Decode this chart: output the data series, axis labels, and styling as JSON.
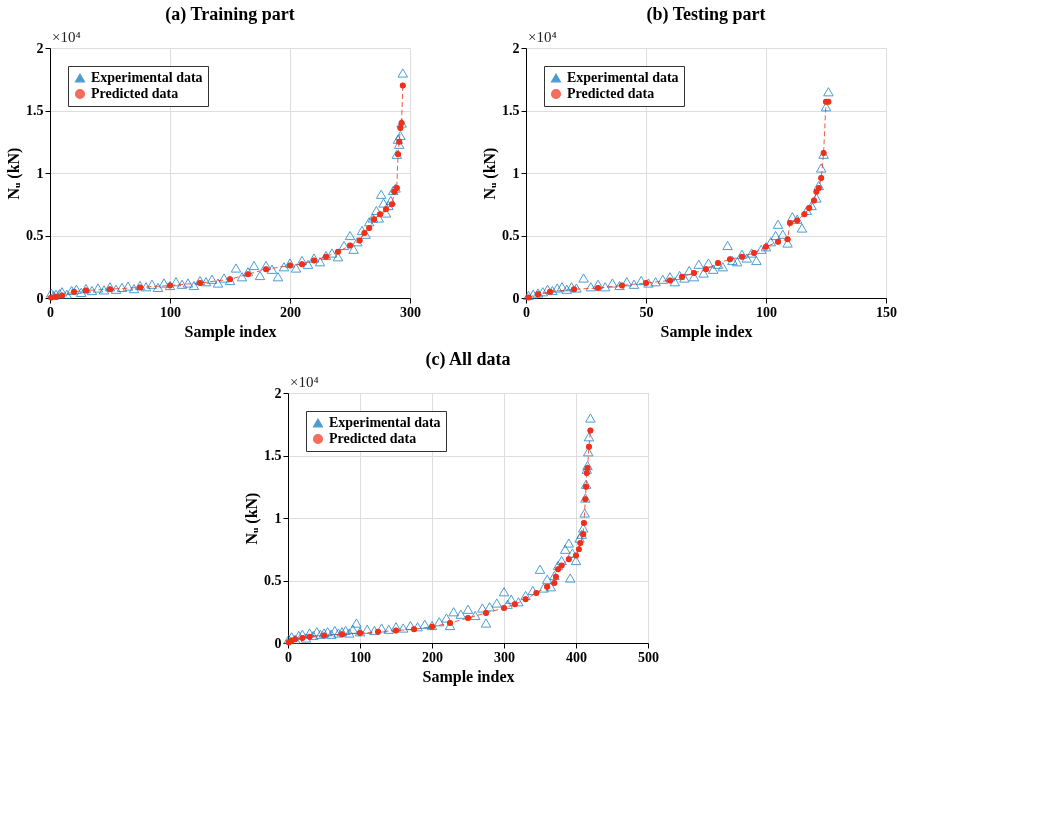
{
  "chart_data": [
    {
      "type": "line",
      "title": "(a) Training part",
      "xlabel": "Sample index",
      "ylabel": "Nᵤ (kN)",
      "annotations": [
        "×10⁴"
      ],
      "xlim": [
        0,
        300
      ],
      "xticks": [
        0,
        100,
        200,
        300
      ],
      "ylim": [
        0,
        2
      ],
      "yticks": [
        0,
        0.5,
        1,
        1.5,
        2
      ],
      "grid": true,
      "legend": "top left",
      "series": [
        {
          "name": "Experimental data",
          "type": "scatter",
          "marker": "triangle",
          "color": "#0072bd",
          "x": [
            1,
            3,
            5,
            8,
            10,
            14,
            18,
            22,
            26,
            30,
            35,
            40,
            45,
            50,
            55,
            60,
            65,
            70,
            75,
            80,
            85,
            90,
            95,
            100,
            105,
            110,
            115,
            120,
            125,
            130,
            135,
            140,
            145,
            150,
            155,
            160,
            165,
            170,
            175,
            180,
            185,
            190,
            195,
            200,
            205,
            210,
            215,
            220,
            225,
            230,
            235,
            240,
            245,
            250,
            253,
            256,
            260,
            263,
            266,
            269,
            272,
            274,
            276,
            278,
            280,
            282,
            284,
            286,
            288,
            289,
            290,
            291,
            292,
            293,
            294
          ],
          "values": [
            0.04,
            0.02,
            0.03,
            0.035,
            0.05,
            0.03,
            0.06,
            0.07,
            0.045,
            0.075,
            0.06,
            0.08,
            0.065,
            0.09,
            0.07,
            0.085,
            0.095,
            0.075,
            0.1,
            0.09,
            0.11,
            0.085,
            0.12,
            0.1,
            0.13,
            0.11,
            0.12,
            0.1,
            0.14,
            0.13,
            0.15,
            0.12,
            0.16,
            0.14,
            0.24,
            0.17,
            0.21,
            0.26,
            0.18,
            0.26,
            0.23,
            0.17,
            0.25,
            0.28,
            0.24,
            0.3,
            0.27,
            0.32,
            0.29,
            0.34,
            0.36,
            0.33,
            0.42,
            0.5,
            0.39,
            0.45,
            0.54,
            0.51,
            0.61,
            0.64,
            0.7,
            0.64,
            0.83,
            0.76,
            0.68,
            0.74,
            0.78,
            0.86,
            0.88,
            1.15,
            1.27,
            1.23,
            1.3,
            1.4,
            1.8
          ]
        },
        {
          "name": "Predicted data",
          "marker": "circle",
          "line_style": "dashed",
          "color": "#f0301a",
          "x": [
            1,
            5,
            10,
            20,
            30,
            50,
            75,
            100,
            125,
            150,
            165,
            180,
            200,
            210,
            220,
            230,
            240,
            250,
            258,
            262,
            266,
            270,
            275,
            280,
            285,
            287,
            289,
            290,
            291,
            292,
            293,
            294
          ],
          "values": [
            0.005,
            0.01,
            0.02,
            0.05,
            0.06,
            0.07,
            0.085,
            0.1,
            0.12,
            0.15,
            0.19,
            0.23,
            0.26,
            0.27,
            0.3,
            0.33,
            0.37,
            0.42,
            0.46,
            0.52,
            0.56,
            0.63,
            0.67,
            0.71,
            0.75,
            0.85,
            0.88,
            1.15,
            1.25,
            1.36,
            1.4,
            1.7
          ]
        }
      ]
    },
    {
      "type": "line",
      "title": "(b) Testing part",
      "xlabel": "Sample index",
      "ylabel": "Nᵤ (kN)",
      "annotations": [
        "×10⁴"
      ],
      "xlim": [
        0,
        150
      ],
      "xticks": [
        0,
        50,
        100,
        150
      ],
      "ylim": [
        0,
        2
      ],
      "yticks": [
        0,
        0.5,
        1,
        1.5,
        2
      ],
      "grid": true,
      "legend": "top left",
      "series": [
        {
          "name": "Experimental data",
          "type": "scatter",
          "marker": "triangle",
          "color": "#0072bd",
          "x": [
            1,
            3,
            5,
            7,
            9,
            11,
            13,
            15,
            17,
            19,
            21,
            24,
            27,
            30,
            33,
            36,
            39,
            42,
            45,
            48,
            51,
            54,
            57,
            60,
            62,
            64,
            66,
            68,
            70,
            72,
            74,
            76,
            78,
            80,
            82,
            84,
            86,
            88,
            90,
            92,
            94,
            96,
            98,
            100,
            102,
            104,
            105,
            107,
            109,
            111,
            113,
            115,
            117,
            119,
            121,
            122,
            123,
            124,
            125,
            126
          ],
          "values": [
            0.02,
            0.03,
            0.04,
            0.05,
            0.07,
            0.06,
            0.08,
            0.09,
            0.07,
            0.09,
            0.08,
            0.16,
            0.09,
            0.11,
            0.09,
            0.12,
            0.1,
            0.13,
            0.11,
            0.14,
            0.12,
            0.13,
            0.15,
            0.17,
            0.13,
            0.18,
            0.16,
            0.22,
            0.17,
            0.27,
            0.2,
            0.28,
            0.23,
            0.27,
            0.25,
            0.42,
            0.3,
            0.29,
            0.35,
            0.32,
            0.36,
            0.3,
            0.39,
            0.41,
            0.45,
            0.5,
            0.59,
            0.51,
            0.44,
            0.65,
            0.63,
            0.56,
            0.7,
            0.74,
            0.8,
            0.9,
            1.04,
            1.15,
            1.53,
            1.65
          ]
        },
        {
          "name": "Predicted data",
          "marker": "circle",
          "line_style": "dashed",
          "color": "#f0301a",
          "x": [
            1,
            5,
            10,
            20,
            30,
            40,
            50,
            60,
            65,
            70,
            75,
            80,
            85,
            90,
            95,
            100,
            105,
            109,
            110,
            113,
            116,
            118,
            120,
            121,
            122,
            123,
            124,
            125,
            126
          ],
          "values": [
            0.005,
            0.03,
            0.05,
            0.07,
            0.08,
            0.1,
            0.12,
            0.14,
            0.17,
            0.2,
            0.23,
            0.28,
            0.31,
            0.33,
            0.36,
            0.41,
            0.45,
            0.47,
            0.6,
            0.62,
            0.67,
            0.72,
            0.78,
            0.85,
            0.88,
            0.96,
            1.16,
            1.57,
            1.57
          ]
        }
      ]
    },
    {
      "type": "line",
      "title": "(c) All data",
      "xlabel": "Sample index",
      "ylabel": "Nᵤ (kN)",
      "annotations": [
        "×10⁴"
      ],
      "xlim": [
        0,
        500
      ],
      "xticks": [
        0,
        100,
        200,
        300,
        400,
        500
      ],
      "ylim": [
        0,
        2
      ],
      "yticks": [
        0,
        0.5,
        1,
        1.5,
        2
      ],
      "grid": true,
      "legend": "top left",
      "series": [
        {
          "name": "Experimental data",
          "type": "scatter",
          "marker": "triangle",
          "color": "#0072bd",
          "x": [
            1,
            5,
            10,
            15,
            20,
            25,
            30,
            35,
            40,
            45,
            50,
            55,
            60,
            65,
            70,
            75,
            80,
            85,
            90,
            95,
            100,
            110,
            120,
            130,
            140,
            150,
            160,
            170,
            180,
            190,
            200,
            210,
            220,
            225,
            230,
            240,
            250,
            260,
            270,
            275,
            280,
            290,
            300,
            305,
            310,
            320,
            330,
            340,
            350,
            355,
            360,
            365,
            370,
            375,
            380,
            385,
            390,
            392,
            395,
            400,
            405,
            408,
            410,
            412,
            413,
            414,
            415,
            416,
            417,
            418,
            420
          ],
          "values": [
            0.03,
            0.05,
            0.03,
            0.06,
            0.07,
            0.04,
            0.08,
            0.06,
            0.09,
            0.07,
            0.08,
            0.09,
            0.07,
            0.1,
            0.08,
            0.09,
            0.1,
            0.08,
            0.11,
            0.16,
            0.09,
            0.11,
            0.1,
            0.12,
            0.11,
            0.13,
            0.12,
            0.14,
            0.13,
            0.15,
            0.14,
            0.17,
            0.2,
            0.14,
            0.25,
            0.23,
            0.27,
            0.22,
            0.28,
            0.16,
            0.29,
            0.32,
            0.41,
            0.31,
            0.35,
            0.33,
            0.38,
            0.42,
            0.59,
            0.44,
            0.51,
            0.45,
            0.54,
            0.62,
            0.66,
            0.75,
            0.8,
            0.52,
            0.72,
            0.66,
            0.84,
            0.87,
            0.92,
            1.04,
            1.16,
            1.27,
            1.39,
            1.42,
            1.53,
            1.65,
            1.8
          ]
        },
        {
          "name": "Predicted data",
          "marker": "circle",
          "line_style": "dashed",
          "color": "#f0301a",
          "x": [
            1,
            5,
            10,
            20,
            30,
            50,
            75,
            100,
            125,
            150,
            175,
            200,
            225,
            250,
            275,
            300,
            315,
            330,
            345,
            360,
            370,
            372,
            375,
            380,
            390,
            400,
            404,
            406,
            410,
            411,
            413,
            414,
            415,
            416,
            418,
            420
          ],
          "values": [
            0.005,
            0.02,
            0.03,
            0.04,
            0.05,
            0.06,
            0.07,
            0.08,
            0.09,
            0.1,
            0.11,
            0.13,
            0.16,
            0.2,
            0.24,
            0.28,
            0.31,
            0.35,
            0.4,
            0.45,
            0.48,
            0.53,
            0.59,
            0.62,
            0.67,
            0.7,
            0.75,
            0.8,
            0.87,
            0.96,
            1.15,
            1.25,
            1.36,
            1.4,
            1.57,
            1.7
          ]
        }
      ]
    }
  ]
}
